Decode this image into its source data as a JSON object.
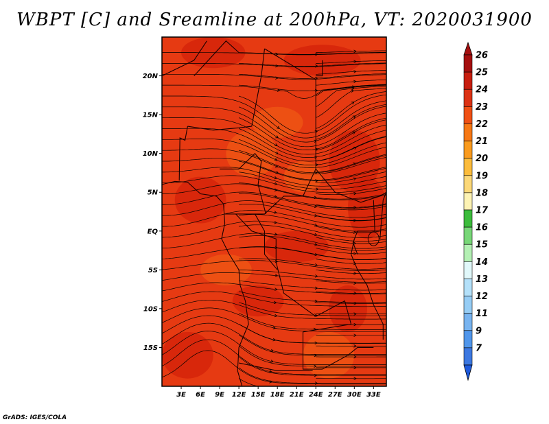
{
  "title": "WBPT [C] and Sreamline at 200hPa, VT: 2020031900",
  "footer": "GrADS: IGES/COLA",
  "map": {
    "lon_range": [
      0,
      35
    ],
    "lat_range": [
      -20,
      25
    ],
    "lat_ticks": [
      {
        "lat": 20,
        "label": "20N"
      },
      {
        "lat": 15,
        "label": "15N"
      },
      {
        "lat": 10,
        "label": "10N"
      },
      {
        "lat": 5,
        "label": "5N"
      },
      {
        "lat": 0,
        "label": "EQ"
      },
      {
        "lat": -5,
        "label": "5S"
      },
      {
        "lat": -10,
        "label": "10S"
      },
      {
        "lat": -15,
        "label": "15S"
      }
    ],
    "lon_ticks": [
      {
        "lon": 3,
        "label": "3E"
      },
      {
        "lon": 6,
        "label": "6E"
      },
      {
        "lon": 9,
        "label": "9E"
      },
      {
        "lon": 12,
        "label": "12E"
      },
      {
        "lon": 15,
        "label": "15E"
      },
      {
        "lon": 18,
        "label": "18E"
      },
      {
        "lon": 21,
        "label": "21E"
      },
      {
        "lon": 24,
        "label": "24E"
      },
      {
        "lon": 27,
        "label": "27E"
      },
      {
        "lon": 30,
        "label": "30E"
      },
      {
        "lon": 33,
        "label": "33E"
      }
    ],
    "field_base_color": "#e63a12",
    "warm_patch_color": "#d21f08",
    "cool_patch_color": "#f05a14",
    "streamline_color": "#000000",
    "border_color": "#1a0000"
  },
  "colorbar": {
    "levels": [
      {
        "label": "26",
        "color": "#a50f0f"
      },
      {
        "label": "25",
        "color": "#c81e0f"
      },
      {
        "label": "24",
        "color": "#dc3214"
      },
      {
        "label": "23",
        "color": "#f05014"
      },
      {
        "label": "22",
        "color": "#f77814"
      },
      {
        "label": "21",
        "color": "#fa9b1e"
      },
      {
        "label": "20",
        "color": "#fcbc3c"
      },
      {
        "label": "19",
        "color": "#fcd878"
      },
      {
        "label": "18",
        "color": "#fdf3b4"
      },
      {
        "label": "17",
        "color": "#3cbc3c"
      },
      {
        "label": "16",
        "color": "#78d778"
      },
      {
        "label": "15",
        "color": "#b4f0b4"
      },
      {
        "label": "14",
        "color": "#e1f8fa"
      },
      {
        "label": "13",
        "color": "#b4e1fa"
      },
      {
        "label": "12",
        "color": "#96cdf5"
      },
      {
        "label": "11",
        "color": "#78b4f0"
      },
      {
        "label": "9",
        "color": "#5096eb"
      },
      {
        "label": "7",
        "color": "#3c78e1"
      }
    ],
    "bottom_color": "#1e5adc",
    "top_color": "#a50f0f"
  }
}
